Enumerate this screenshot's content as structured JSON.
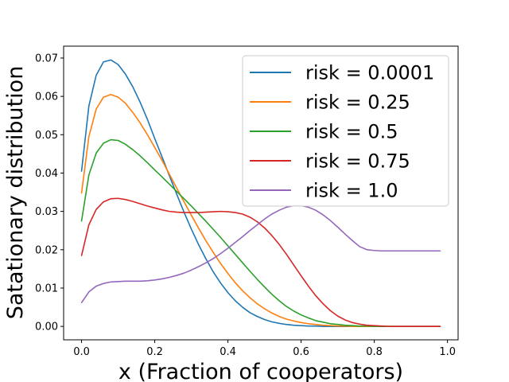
{
  "chart_data": {
    "type": "line",
    "title": "",
    "xlabel": "x (Fraction of cooperators)",
    "ylabel": "Satationary distribution",
    "xlim": [
      -0.049,
      1.029
    ],
    "ylim": [
      -0.0035,
      0.0731
    ],
    "x_ticks": [
      "0.0",
      "0.2",
      "0.4",
      "0.6",
      "0.8",
      "1.0"
    ],
    "y_ticks": [
      "0.00",
      "0.01",
      "0.02",
      "0.03",
      "0.04",
      "0.05",
      "0.06",
      "0.07"
    ],
    "x_tick_values": [
      0,
      0.2,
      0.4,
      0.6,
      0.8,
      1.0
    ],
    "y_tick_values": [
      0,
      0.01,
      0.02,
      0.03,
      0.04,
      0.05,
      0.06,
      0.07
    ],
    "grid": false,
    "legend_position": "top-right",
    "x": [
      0.0,
      0.02,
      0.04,
      0.06,
      0.08,
      0.1,
      0.12,
      0.14,
      0.16,
      0.18,
      0.2,
      0.22,
      0.24,
      0.26,
      0.28,
      0.3,
      0.32,
      0.34,
      0.36,
      0.38,
      0.4,
      0.42,
      0.44,
      0.46,
      0.48,
      0.5,
      0.52,
      0.54,
      0.56,
      0.58,
      0.6,
      0.62,
      0.64,
      0.66,
      0.68,
      0.7,
      0.72,
      0.74,
      0.76,
      0.78,
      0.8,
      0.82,
      0.84,
      0.86,
      0.88,
      0.9,
      0.92,
      0.94,
      0.96,
      0.98
    ],
    "series": [
      {
        "name": "risk = 0.0001",
        "color": "#1f77b4",
        "values": [
          0.0405,
          0.0575,
          0.0655,
          0.069,
          0.0695,
          0.0683,
          0.0658,
          0.0625,
          0.0585,
          0.054,
          0.049,
          0.0442,
          0.0393,
          0.0345,
          0.0298,
          0.0254,
          0.0213,
          0.0176,
          0.0142,
          0.0113,
          0.0088,
          0.0067,
          0.005,
          0.0036,
          0.0026,
          0.0018,
          0.0012,
          0.0008,
          0.0005,
          0.0003,
          0.0002,
          0.0001,
          0.0001,
          0.0,
          0.0,
          0.0,
          0.0,
          0.0,
          0.0,
          0.0,
          0.0,
          0.0,
          0.0,
          0.0,
          0.0,
          0.0,
          0.0,
          0.0,
          0.0,
          0.0
        ]
      },
      {
        "name": "risk = 0.25",
        "color": "#ff7f0e",
        "values": [
          0.0348,
          0.0495,
          0.0567,
          0.0598,
          0.0605,
          0.0598,
          0.0582,
          0.0558,
          0.0531,
          0.05,
          0.0467,
          0.0433,
          0.0397,
          0.0361,
          0.0325,
          0.029,
          0.0256,
          0.0223,
          0.0193,
          0.0164,
          0.0138,
          0.0114,
          0.0093,
          0.0075,
          0.0059,
          0.0046,
          0.0035,
          0.0026,
          0.0019,
          0.0014,
          0.001,
          0.0007,
          0.0005,
          0.0003,
          0.0002,
          0.0001,
          0.0001,
          0.0,
          0.0,
          0.0,
          0.0,
          0.0,
          0.0,
          0.0,
          0.0,
          0.0,
          0.0,
          0.0,
          0.0,
          0.0
        ]
      },
      {
        "name": "risk = 0.5",
        "color": "#2ca02c",
        "values": [
          0.0275,
          0.0395,
          0.0452,
          0.0478,
          0.0487,
          0.0485,
          0.0475,
          0.0461,
          0.0445,
          0.0427,
          0.0408,
          0.039,
          0.0371,
          0.0352,
          0.0333,
          0.0314,
          0.0294,
          0.0274,
          0.0253,
          0.0232,
          0.021,
          0.0188,
          0.0166,
          0.0144,
          0.0123,
          0.0103,
          0.0084,
          0.0067,
          0.0052,
          0.004,
          0.003,
          0.0022,
          0.0015,
          0.0011,
          0.0007,
          0.0005,
          0.0003,
          0.0002,
          0.0001,
          0.0001,
          0.0,
          0.0,
          0.0,
          0.0,
          0.0,
          0.0,
          0.0,
          0.0,
          0.0,
          0.0
        ]
      },
      {
        "name": "risk = 0.75",
        "color": "#d62728",
        "values": [
          0.0185,
          0.0265,
          0.0305,
          0.0325,
          0.0333,
          0.0334,
          0.0331,
          0.0326,
          0.032,
          0.0314,
          0.0309,
          0.0304,
          0.03,
          0.0298,
          0.0297,
          0.0297,
          0.0297,
          0.0298,
          0.0299,
          0.03,
          0.0299,
          0.0297,
          0.0293,
          0.0285,
          0.0273,
          0.0257,
          0.0237,
          0.0214,
          0.0188,
          0.016,
          0.0132,
          0.0105,
          0.008,
          0.0059,
          0.0041,
          0.0027,
          0.0017,
          0.001,
          0.0006,
          0.0003,
          0.0002,
          0.0001,
          0.0,
          0.0,
          0.0,
          0.0,
          0.0,
          0.0,
          0.0,
          0.0
        ]
      },
      {
        "name": "risk = 1.0",
        "color": "#9467bd",
        "values": [
          0.0062,
          0.009,
          0.0105,
          0.0112,
          0.0116,
          0.0117,
          0.0118,
          0.0118,
          0.0118,
          0.0119,
          0.0121,
          0.0124,
          0.0128,
          0.0133,
          0.0139,
          0.0147,
          0.0156,
          0.0166,
          0.0177,
          0.019,
          0.0204,
          0.0219,
          0.0234,
          0.025,
          0.0265,
          0.028,
          0.0293,
          0.0303,
          0.0311,
          0.0315,
          0.0315,
          0.0311,
          0.0303,
          0.0291,
          0.0276,
          0.0259,
          0.0241,
          0.0224,
          0.0208,
          0.02,
          0.0198,
          0.0197,
          0.0197,
          0.0197,
          0.0197,
          0.0197,
          0.0197,
          0.0197,
          0.0197,
          0.0197
        ]
      }
    ]
  }
}
